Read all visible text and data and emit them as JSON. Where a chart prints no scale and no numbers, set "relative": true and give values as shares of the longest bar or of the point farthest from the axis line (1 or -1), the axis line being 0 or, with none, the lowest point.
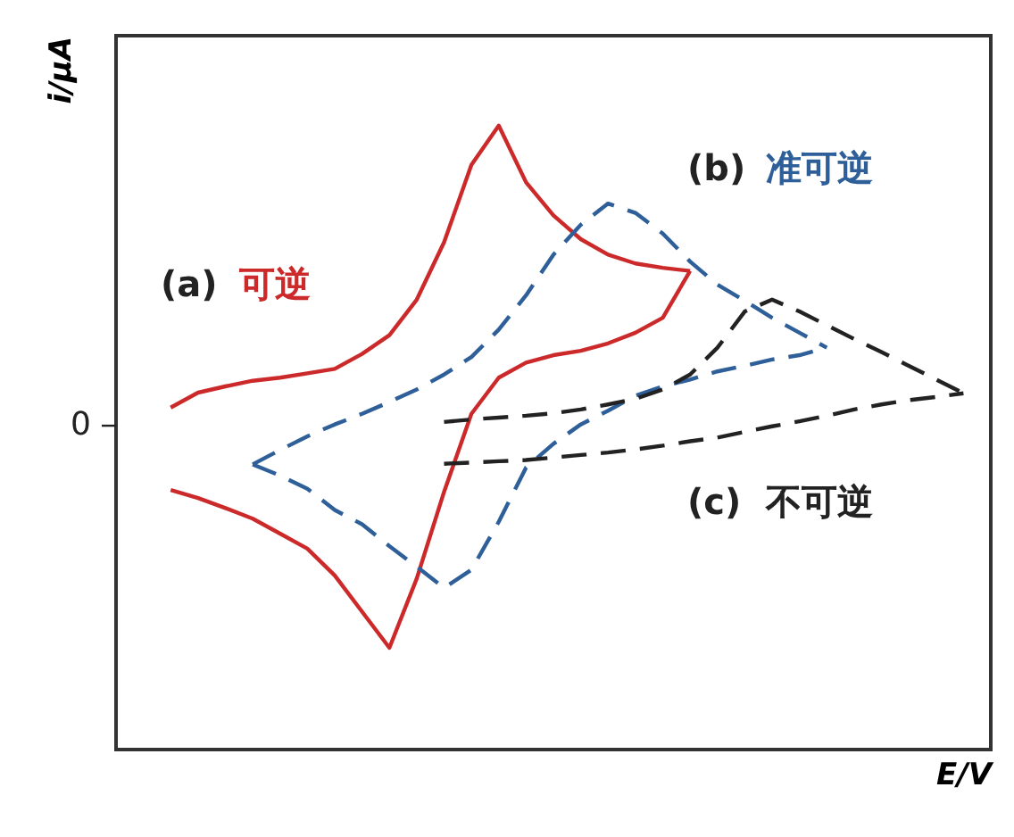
{
  "chart_data": {
    "type": "line",
    "relative": true,
    "xlabel": "E/V",
    "ylabel": "i/μA",
    "categories": [
      null,
      null,
      null,
      null,
      null,
      null,
      null,
      null,
      null,
      null,
      null,
      null,
      null,
      null,
      null,
      null,
      null,
      null,
      null,
      null,
      null,
      null,
      null,
      null,
      null,
      null,
      null,
      null,
      null,
      null,
      null,
      null,
      null
    ],
    "annotations": [
      "0"
    ],
    "series": [
      {
        "name": "(a) 可逆",
        "color": "#cc2a2a",
        "line_style": "solid",
        "values": [
          null,
          null,
          0.548,
          0.572,
          0.582,
          0.591,
          0.596,
          0.603,
          0.61,
          0.634,
          0.664,
          0.721,
          0.813,
          0.937,
          1.0,
          0.909,
          0.856,
          0.818,
          0.793,
          0.779,
          0.772,
          0.767,
          null,
          null,
          null,
          null,
          null,
          null,
          null,
          null,
          null,
          null,
          null
        ]
      },
      {
        "color": "#cc2a2a",
        "line_style": "solid",
        "values": [
          null,
          null,
          0.416,
          0.403,
          0.387,
          0.37,
          0.346,
          0.322,
          0.279,
          0.221,
          0.163,
          0.274,
          0.413,
          0.538,
          0.596,
          0.62,
          0.632,
          0.639,
          0.651,
          0.668,
          0.692,
          0.767,
          null,
          null,
          null,
          null,
          null,
          null,
          null,
          null,
          null,
          null,
          null
        ]
      },
      {
        "name": "(b) 准可逆",
        "color": "#2e5f99",
        "line_style": "dashed",
        "values": [
          null,
          null,
          null,
          null,
          null,
          0.457,
          0.48,
          0.502,
          0.521,
          0.538,
          0.557,
          0.577,
          0.601,
          0.629,
          0.673,
          0.728,
          0.793,
          0.841,
          0.875,
          0.86,
          0.827,
          0.782,
          0.745,
          0.719,
          0.692,
          0.668,
          0.644,
          null,
          null,
          null,
          null,
          null,
          null
        ]
      },
      {
        "color": "#2e5f99",
        "line_style": "dashed",
        "values": [
          null,
          null,
          null,
          null,
          null,
          0.457,
          0.439,
          0.418,
          0.384,
          0.361,
          0.326,
          0.293,
          0.259,
          0.288,
          0.365,
          0.452,
          0.49,
          0.521,
          0.543,
          0.567,
          0.582,
          0.593,
          0.606,
          0.615,
          0.625,
          0.632,
          0.644,
          null,
          null,
          null,
          null,
          null,
          null
        ]
      },
      {
        "name": "(c) 不可逆",
        "color": "#222222",
        "line_style": "dashed",
        "values": [
          null,
          null,
          null,
          null,
          null,
          null,
          null,
          null,
          null,
          null,
          null,
          null,
          0.525,
          0.529,
          0.532,
          0.535,
          0.539,
          0.545,
          0.553,
          0.562,
          0.577,
          0.601,
          0.644,
          0.702,
          0.721,
          0.702,
          0.68,
          0.658,
          0.637,
          0.615,
          0.593,
          0.571,
          null
        ]
      },
      {
        "color": "#222222",
        "line_style": "dashed",
        "values": [
          null,
          null,
          null,
          null,
          null,
          null,
          null,
          null,
          null,
          null,
          null,
          null,
          0.458,
          0.46,
          0.462,
          0.464,
          0.468,
          0.472,
          0.476,
          0.481,
          0.487,
          0.494,
          0.5,
          0.509,
          0.518,
          0.526,
          0.535,
          0.545,
          0.553,
          0.56,
          0.565,
          0.571,
          null
        ]
      }
    ]
  }
}
